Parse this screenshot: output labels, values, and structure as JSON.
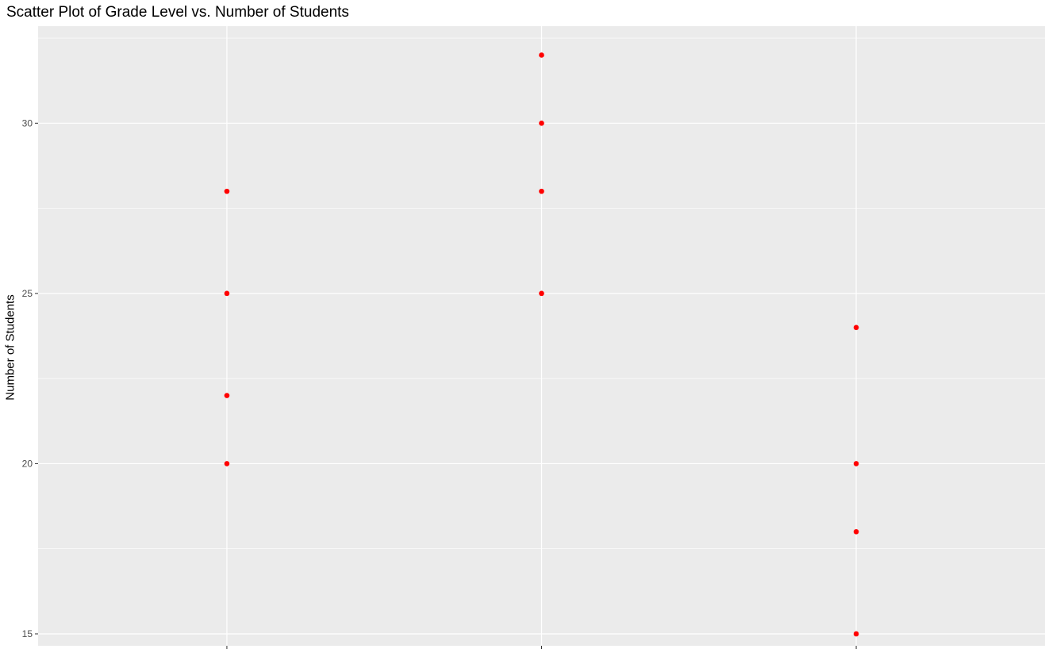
{
  "chart_data": {
    "type": "scatter",
    "title": "Scatter Plot of Grade Level vs. Number of Students",
    "xlabel": "",
    "ylabel": "Number of Students",
    "x_categories": [
      "",
      "",
      ""
    ],
    "points": [
      {
        "x": 1,
        "y": 28
      },
      {
        "x": 1,
        "y": 25
      },
      {
        "x": 1,
        "y": 22
      },
      {
        "x": 1,
        "y": 20
      },
      {
        "x": 2,
        "y": 32
      },
      {
        "x": 2,
        "y": 30
      },
      {
        "x": 2,
        "y": 28
      },
      {
        "x": 2,
        "y": 25
      },
      {
        "x": 3,
        "y": 24
      },
      {
        "x": 3,
        "y": 20
      },
      {
        "x": 3,
        "y": 18
      },
      {
        "x": 3,
        "y": 15
      }
    ],
    "xlim": [
      0.4,
      3.6
    ],
    "ylim": [
      14.65,
      32.85
    ],
    "yticks": [
      15,
      20,
      25,
      30
    ],
    "ytick_labels": [
      "15",
      "20",
      "25",
      "30"
    ],
    "y_minor_ticks": [
      17.5,
      22.5,
      27.5,
      32.5
    ],
    "grid": true,
    "legend": "none",
    "colors": {
      "panel_background": "#ebebeb",
      "grid": "#ffffff",
      "point": "#ff0000",
      "tick": "#333333"
    }
  }
}
